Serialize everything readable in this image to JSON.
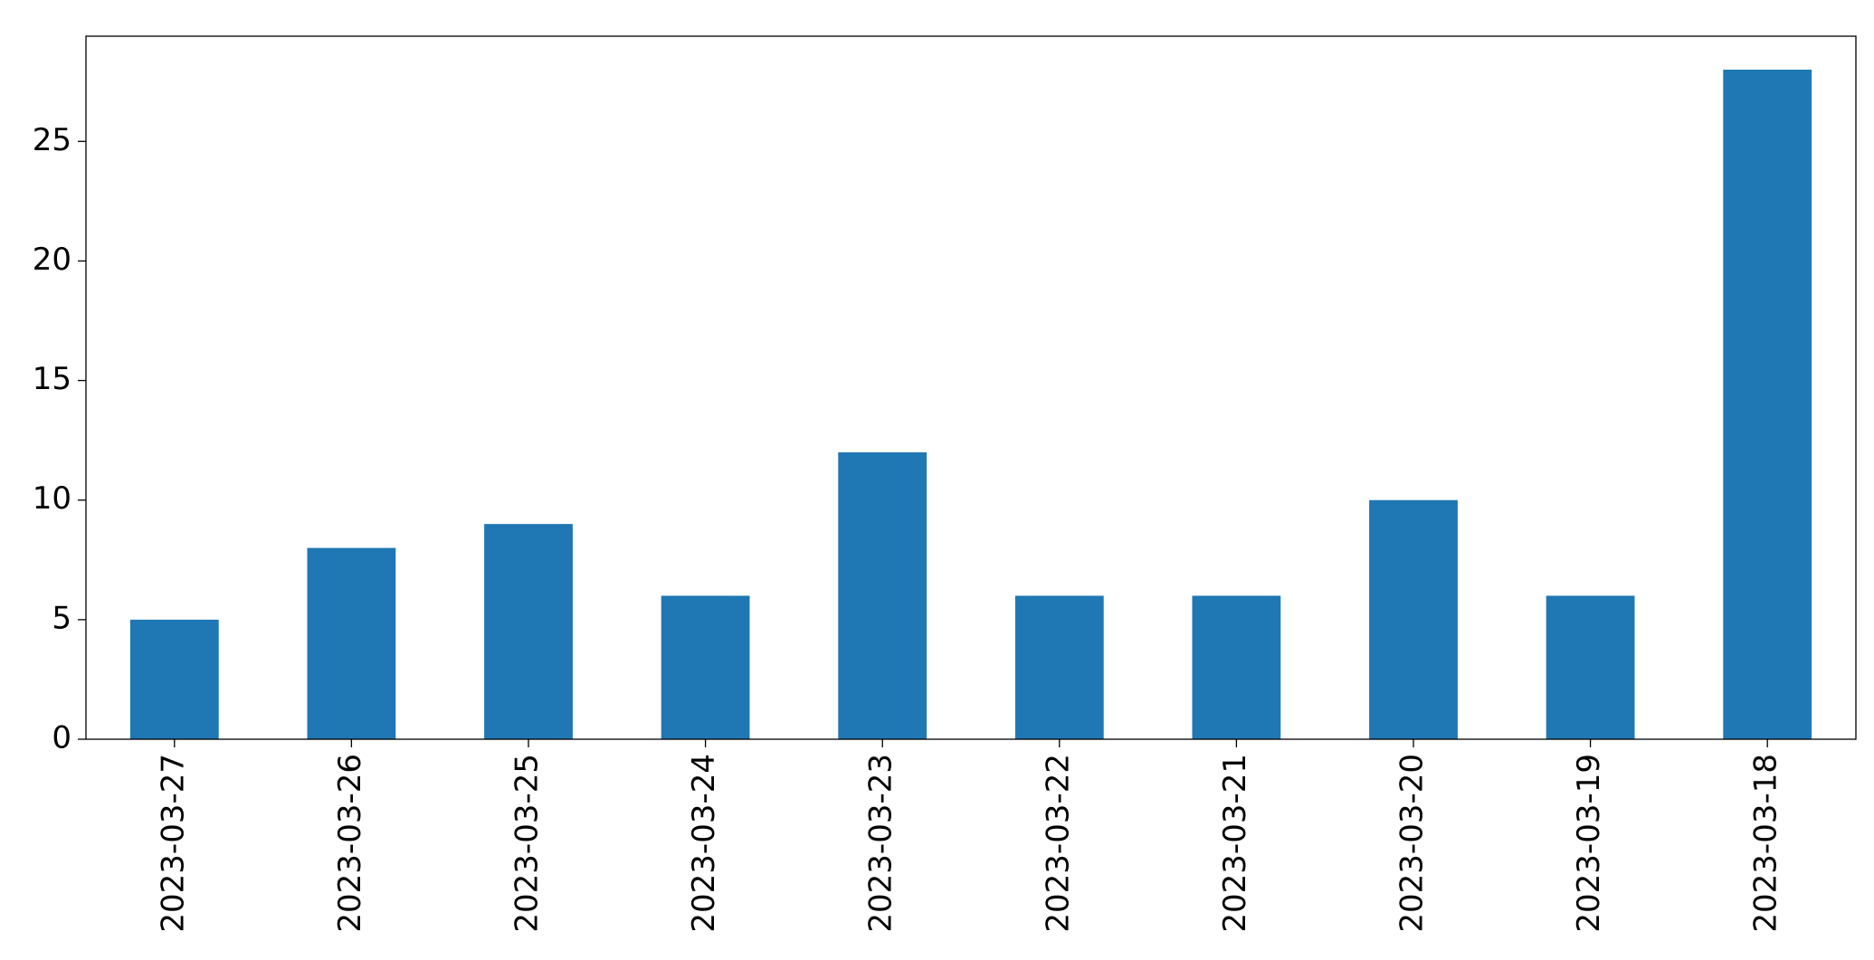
{
  "chart_data": {
    "type": "bar",
    "categories": [
      "2023-03-27",
      "2023-03-26",
      "2023-03-25",
      "2023-03-24",
      "2023-03-23",
      "2023-03-22",
      "2023-03-21",
      "2023-03-20",
      "2023-03-19",
      "2023-03-18"
    ],
    "values": [
      5,
      8,
      9,
      6,
      12,
      6,
      6,
      10,
      6,
      28
    ],
    "color": "#1f77b4",
    "ylim": [
      0,
      29.4
    ],
    "yticks": [
      0,
      5,
      10,
      15,
      20,
      25
    ],
    "grid": false
  }
}
